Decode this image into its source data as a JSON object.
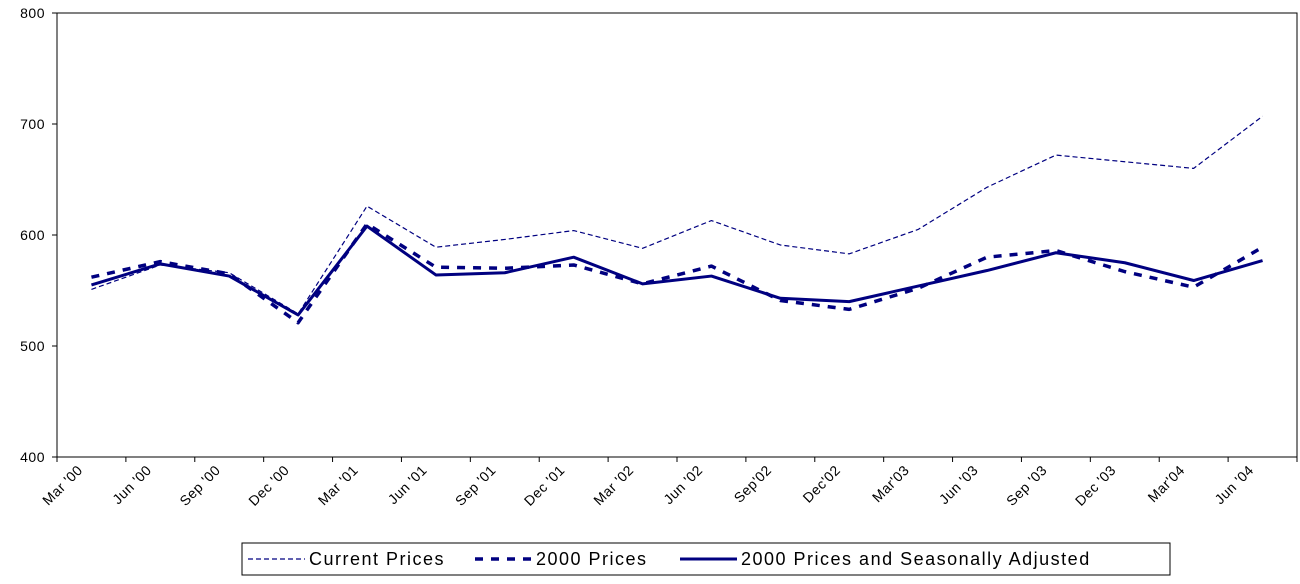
{
  "chart_data": {
    "type": "line",
    "categories": [
      "Mar '00",
      "Jun '00",
      "Sep '00",
      "Dec '00",
      "Mar '01",
      "Jun '01",
      "Sep '01",
      "Dec '01",
      "Mar '02",
      "Jun '02",
      "Sep'02",
      "Dec'02",
      "Mar'03",
      "Jun '03",
      "Sep '03",
      "Dec '03",
      "Mar'04",
      "Jun '04"
    ],
    "series": [
      {
        "name": "Current Prices",
        "color": "#000080",
        "values": [
          551,
          573,
          566,
          529,
          626,
          589,
          596,
          604,
          588,
          613,
          591,
          583,
          605,
          643,
          672,
          666,
          660,
          707
        ]
      },
      {
        "name": "2000 Prices",
        "color": "#000080",
        "values": [
          562,
          576,
          565,
          521,
          610,
          571,
          570,
          573,
          556,
          572,
          541,
          533,
          552,
          580,
          586,
          567,
          553,
          589
        ]
      },
      {
        "name": "2000 Prices and Seasonally Adjusted",
        "color": "#000080",
        "values": [
          555,
          574,
          563,
          528,
          608,
          564,
          566,
          580,
          556,
          563,
          543,
          540,
          554,
          568,
          584,
          575,
          559,
          577
        ]
      }
    ],
    "ylim": [
      400,
      800
    ],
    "yticks": [
      400,
      500,
      600,
      700,
      800
    ],
    "grid": false,
    "legend": "bottom"
  }
}
